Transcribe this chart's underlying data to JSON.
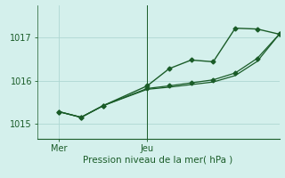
{
  "xlabel": "Pression niveau de la mer( hPa )",
  "bg_color": "#d4f0ec",
  "grid_color": "#aed8d2",
  "line_color": "#1a5c28",
  "tick_color": "#1a5c28",
  "label_color": "#1a5c28",
  "ylim": [
    1014.65,
    1017.75
  ],
  "yticks": [
    1015,
    1016,
    1017
  ],
  "xtick_positions": [
    1,
    5
  ],
  "xtick_labels": [
    "Mer",
    "Jeu"
  ],
  "xlim": [
    0,
    11
  ],
  "vline_x": 5,
  "line1_x": [
    1,
    2,
    3,
    5,
    6,
    7,
    8,
    9,
    10,
    11
  ],
  "line1_y": [
    1015.28,
    1015.15,
    1015.42,
    1015.88,
    1016.28,
    1016.48,
    1016.44,
    1017.22,
    1017.2,
    1017.08
  ],
  "line2_x": [
    1,
    2,
    3,
    5,
    6,
    7,
    8,
    9,
    10,
    11
  ],
  "line2_y": [
    1015.28,
    1015.15,
    1015.42,
    1015.82,
    1015.88,
    1015.95,
    1016.02,
    1016.18,
    1016.52,
    1017.08
  ],
  "line3_x": [
    1,
    2,
    3,
    5,
    6,
    7,
    8,
    9,
    10,
    11
  ],
  "line3_y": [
    1015.28,
    1015.15,
    1015.42,
    1015.8,
    1015.85,
    1015.91,
    1015.97,
    1016.12,
    1016.45,
    1017.08
  ],
  "marker_size": 2.5,
  "lw1": 1.0,
  "lw2": 0.9
}
